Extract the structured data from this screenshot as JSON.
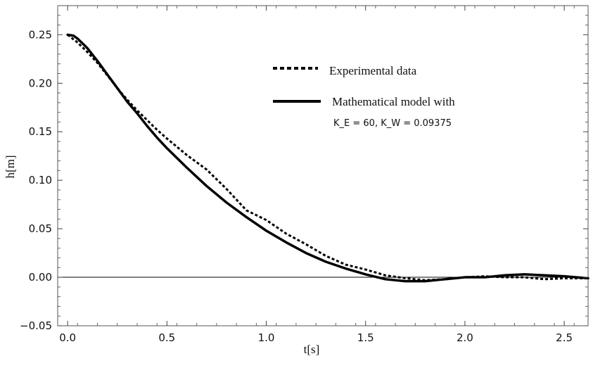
{
  "chart_data": {
    "type": "line",
    "xlabel": "t[s]",
    "ylabel": "h[m]",
    "xlim": [
      -0.05,
      2.62
    ],
    "ylim": [
      -0.05,
      0.28
    ],
    "x_ticks": [
      "0.0",
      "0.5",
      "1.0",
      "1.5",
      "2.0",
      "2.5"
    ],
    "y_ticks": [
      "−0.05",
      "0.00",
      "0.05",
      "0.10",
      "0.15",
      "0.20",
      "0.25"
    ],
    "grid": false,
    "legend_position": "top-right",
    "annotation": "K_E = 60, K_W = 0.09375",
    "series": [
      {
        "name": "Experimental data",
        "style": "dashed",
        "points": [
          [
            0.0,
            0.25
          ],
          [
            0.05,
            0.242
          ],
          [
            0.1,
            0.232
          ],
          [
            0.15,
            0.221
          ],
          [
            0.2,
            0.208
          ],
          [
            0.25,
            0.195
          ],
          [
            0.3,
            0.183
          ],
          [
            0.35,
            0.172
          ],
          [
            0.4,
            0.162
          ],
          [
            0.45,
            0.152
          ],
          [
            0.5,
            0.143
          ],
          [
            0.6,
            0.126
          ],
          [
            0.7,
            0.111
          ],
          [
            0.8,
            0.091
          ],
          [
            0.9,
            0.069
          ],
          [
            1.0,
            0.059
          ],
          [
            1.1,
            0.045
          ],
          [
            1.2,
            0.034
          ],
          [
            1.3,
            0.022
          ],
          [
            1.4,
            0.013
          ],
          [
            1.5,
            0.008
          ],
          [
            1.6,
            0.002
          ],
          [
            1.7,
            -0.001
          ],
          [
            1.8,
            -0.003
          ],
          [
            1.9,
            -0.002
          ],
          [
            2.0,
            0.0
          ],
          [
            2.1,
            0.001
          ],
          [
            2.2,
            0.0
          ],
          [
            2.3,
            0.0
          ],
          [
            2.4,
            -0.002
          ],
          [
            2.5,
            -0.001
          ],
          [
            2.62,
            -0.001
          ]
        ]
      },
      {
        "name": "Mathematical model with",
        "style": "solid",
        "points": [
          [
            0.0,
            0.25
          ],
          [
            0.03,
            0.249
          ],
          [
            0.05,
            0.246
          ],
          [
            0.1,
            0.236
          ],
          [
            0.15,
            0.223
          ],
          [
            0.2,
            0.209
          ],
          [
            0.25,
            0.195
          ],
          [
            0.3,
            0.181
          ],
          [
            0.35,
            0.169
          ],
          [
            0.4,
            0.156
          ],
          [
            0.45,
            0.144
          ],
          [
            0.5,
            0.133
          ],
          [
            0.6,
            0.113
          ],
          [
            0.7,
            0.094
          ],
          [
            0.8,
            0.077
          ],
          [
            0.9,
            0.062
          ],
          [
            1.0,
            0.048
          ],
          [
            1.1,
            0.036
          ],
          [
            1.2,
            0.025
          ],
          [
            1.3,
            0.016
          ],
          [
            1.4,
            0.009
          ],
          [
            1.5,
            0.003
          ],
          [
            1.6,
            -0.002
          ],
          [
            1.7,
            -0.004
          ],
          [
            1.8,
            -0.004
          ],
          [
            1.9,
            -0.002
          ],
          [
            2.0,
            0.0
          ],
          [
            2.1,
            0.0
          ],
          [
            2.2,
            0.002
          ],
          [
            2.3,
            0.003
          ],
          [
            2.4,
            0.002
          ],
          [
            2.5,
            0.001
          ],
          [
            2.62,
            -0.001
          ]
        ]
      }
    ]
  },
  "colors": {
    "line": "#000000",
    "frame": "#555555",
    "background": "#ffffff"
  }
}
